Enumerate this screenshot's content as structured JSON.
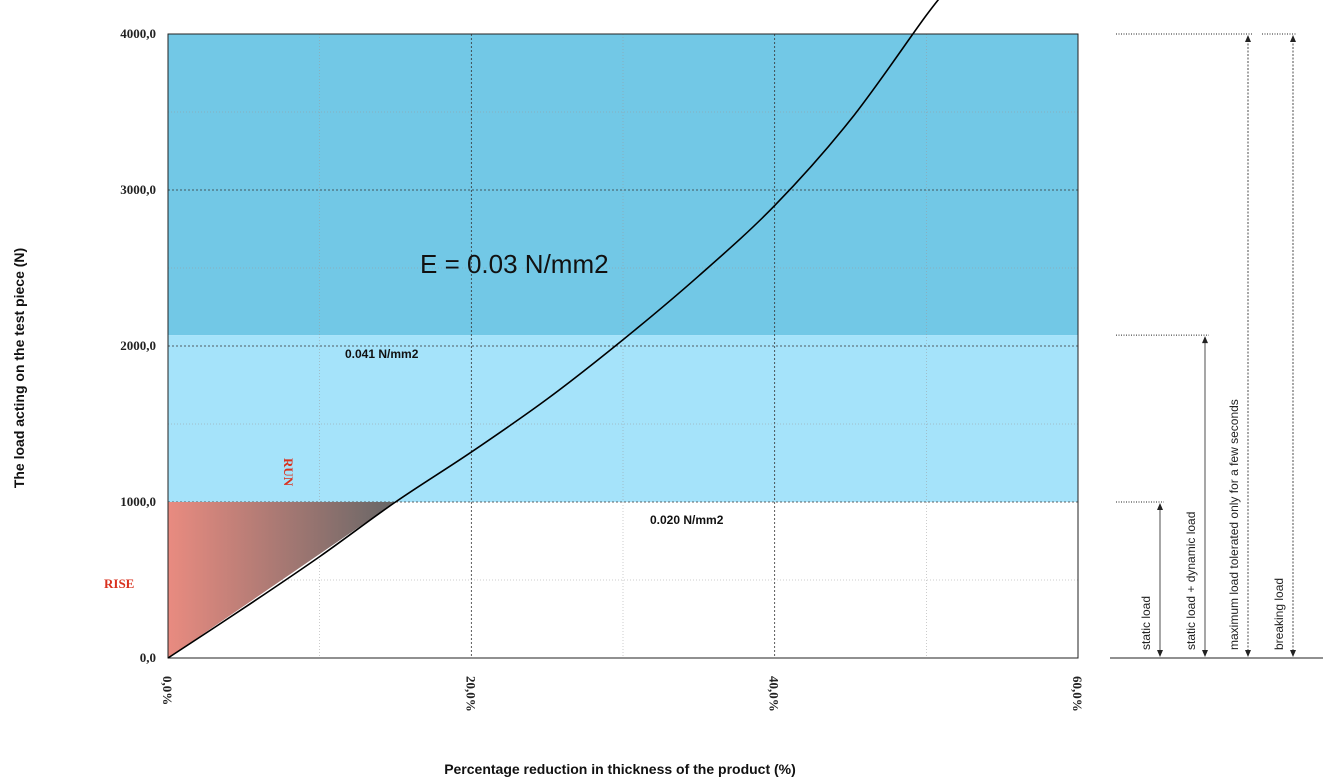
{
  "chart_data": {
    "type": "line",
    "xlabel": "Percentage reduction in thickness of the product (%)",
    "ylabel": "The load acting on the test piece (N)",
    "xlim": [
      0,
      60
    ],
    "ylim": [
      0,
      4000
    ],
    "x_ticks": [
      0,
      20,
      40,
      60
    ],
    "x_tick_labels": [
      "0,0%",
      "20,0%",
      "40,0%",
      "60,0%"
    ],
    "y_ticks": [
      0,
      1000,
      2000,
      3000,
      4000
    ],
    "y_tick_labels": [
      "0,0",
      "1000,0",
      "2000,0",
      "3000,0",
      "4000,0"
    ],
    "grid": true,
    "series": [
      {
        "x": [
          0,
          5,
          10,
          15,
          20,
          25,
          30,
          35,
          40,
          45,
          50,
          51.5
        ],
        "y": [
          0,
          320,
          650,
          1000,
          1320,
          1660,
          2040,
          2450,
          2900,
          3450,
          4120,
          4300
        ],
        "color": "#000000"
      }
    ],
    "bands": [
      {
        "from": 2070,
        "to": 4000,
        "color": "#72c8e6"
      },
      {
        "from": 1000,
        "to": 2070,
        "color": "#a5e3fa"
      }
    ],
    "annotations": {
      "modulus_main": "E = 0.03 N/mm2",
      "modulus_upper": "0.041 N/mm2",
      "modulus_lower": "0.020 N/mm2",
      "run": "RUN",
      "rise": "RISE"
    },
    "load_levels": [
      {
        "label": "static load",
        "value": 1000
      },
      {
        "label": "static load + dynamic load",
        "value": 2070
      },
      {
        "label": "maximum load tolerated only for a few seconds",
        "value": 4000
      },
      {
        "label": "breaking load",
        "value": 4000
      }
    ],
    "colors": {
      "accent_red": "#d9321f",
      "triangle_start": "#e98b80",
      "triangle_end": "#666666"
    }
  }
}
